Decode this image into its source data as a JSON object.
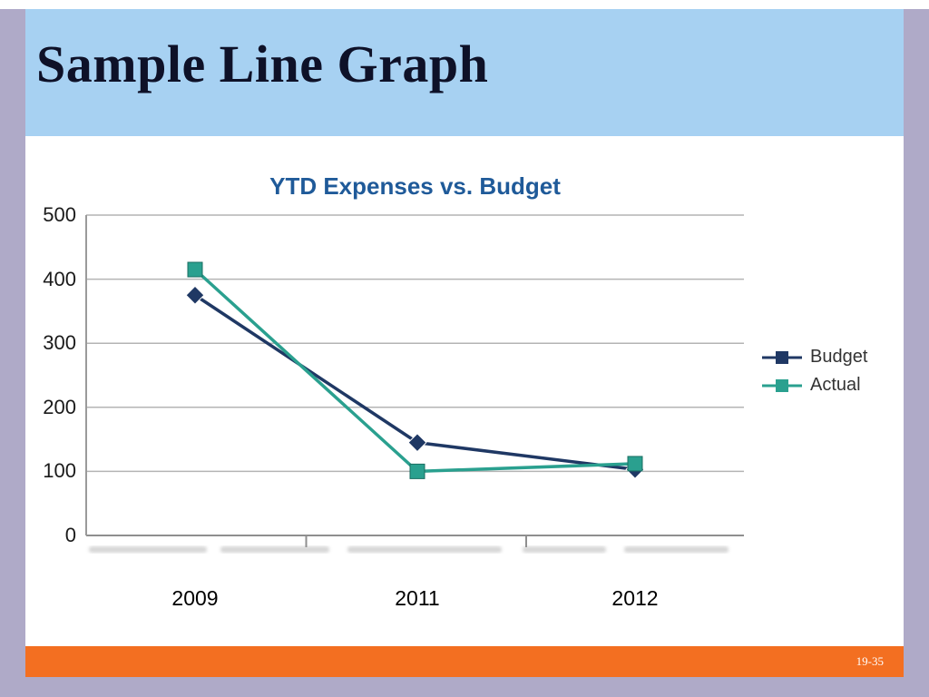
{
  "slide": {
    "title": "Sample Line Graph"
  },
  "chart_data": {
    "type": "line",
    "title": "YTD Expenses vs. Budget",
    "categories": [
      "2009",
      "2011",
      "2012"
    ],
    "series": [
      {
        "name": "Budget",
        "marker": "diamond",
        "color": "#1f3864",
        "values": [
          375,
          145,
          103
        ]
      },
      {
        "name": "Actual",
        "marker": "square",
        "color": "#2aa08f",
        "values": [
          415,
          100,
          112
        ]
      }
    ],
    "xlabel": "",
    "ylabel": "",
    "ylim": [
      0,
      500
    ],
    "yticks": [
      0,
      100,
      200,
      300,
      400,
      500
    ],
    "grid": true,
    "legend_position": "right"
  },
  "footer": {
    "page_number": "19-35"
  },
  "theme": {
    "header_blue": "#a7d1f2",
    "border_lavender": "#afaac8",
    "footer_orange": "#f36f21",
    "slide_title_color": "#0e1128",
    "chart_title_color": "#1f5a99",
    "grid_color": "#b4b4b4",
    "axis_color": "#8f8f8f",
    "tick_label_color": "#1a1a1a"
  }
}
